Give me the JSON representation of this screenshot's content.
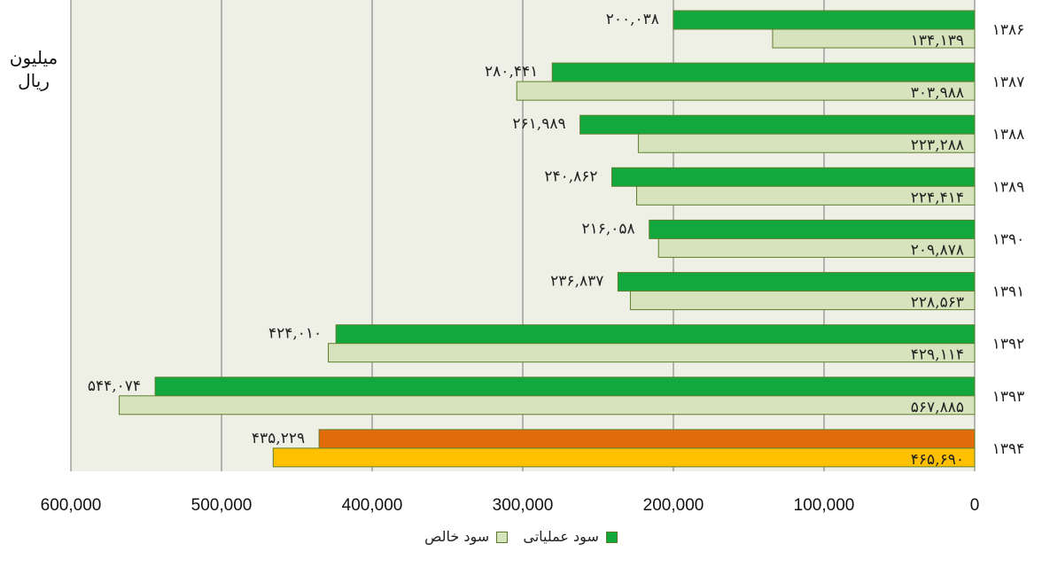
{
  "chart_data": {
    "type": "bar",
    "orientation": "horizontal",
    "x_reversed": true,
    "xlim": [
      0,
      600000
    ],
    "x_ticks": [
      600000,
      500000,
      400000,
      300000,
      200000,
      100000,
      0
    ],
    "x_tick_labels": [
      "600,000",
      "500,000",
      "400,000",
      "300,000",
      "200,000",
      "100,000",
      "0"
    ],
    "grid": true,
    "unit_label_line1": "میلیون",
    "unit_label_line2": "ریال",
    "categories": [
      "۱۳۸۶",
      "۱۳۸۷",
      "۱۳۸۸",
      "۱۳۸۹",
      "۱۳۹۰",
      "۱۳۹۱",
      "۱۳۹۲",
      "۱۳۹۳",
      "۱۳۹۴"
    ],
    "series": [
      {
        "name": "سود عملیاتی",
        "color": "#13a83e",
        "highlight_color": "#e36c0a",
        "values": [
          200038,
          280441,
          261989,
          240862,
          216058,
          236837,
          424010,
          544074,
          435229
        ],
        "labels": [
          "۲۰۰,۰۳۸",
          "۲۸۰,۴۴۱",
          "۲۶۱,۹۸۹",
          "۲۴۰,۸۶۲",
          "۲۱۶,۰۵۸",
          "۲۳۶,۸۳۷",
          "۴۲۴,۰۱۰",
          "۵۴۴,۰۷۴",
          "۴۳۵,۲۲۹"
        ]
      },
      {
        "name": "سود خالص",
        "color": "#d6e3bc",
        "highlight_color": "#ffc000",
        "values": [
          134139,
          303988,
          223288,
          224414,
          209878,
          228563,
          429114,
          567885,
          465690
        ],
        "labels": [
          "۱۳۴,۱۳۹",
          "۳۰۳,۹۸۸",
          "۲۲۳,۲۸۸",
          "۲۲۴,۴۱۴",
          "۲۰۹,۸۷۸",
          "۲۲۸,۵۶۳",
          "۴۲۹,۱۱۴",
          "۵۶۷,۸۸۵",
          "۴۶۵,۶۹۰"
        ]
      }
    ],
    "highlight_category_index": 8,
    "plot_background": "#eef0e6",
    "bar_border": "#5f7f2f",
    "legend": {
      "placement": "bottom",
      "items": [
        {
          "label": "سود عملیاتی",
          "color": "#13a83e"
        },
        {
          "label": "سود خالص",
          "color": "#d6e3bc"
        }
      ]
    }
  }
}
